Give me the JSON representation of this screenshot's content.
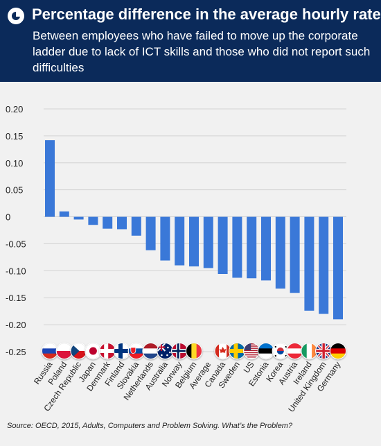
{
  "header": {
    "title": "Percentage difference in the average hourly rate",
    "subtitle": "Between employees who have failed to move up the corporate ladder due to lack of ICT skills and those who did not report such difficulties"
  },
  "source": "Source: OECD, 2015, Adults, Computers and Problem Solving. What’s the Problem?",
  "colors": {
    "bar": "#3a78d8",
    "header_bg": "#0b2a5a",
    "background": "#f1f1f1"
  },
  "chart_data": {
    "type": "bar",
    "title": "Percentage difference in the average hourly rate",
    "ylim": [
      -0.25,
      0.2
    ],
    "yticks": [
      0.2,
      0.15,
      0.1,
      0.05,
      0,
      -0.05,
      -0.1,
      -0.15,
      -0.2,
      -0.25
    ],
    "ytick_labels": [
      "0.20",
      "0.15",
      "0.10",
      "0.05",
      "0",
      "-0.05",
      "-0.10",
      "-0.15",
      "-0.20",
      "-0.25"
    ],
    "categories": [
      "Russia",
      "Poland",
      "Czech Republic",
      "Japan",
      "Denmark",
      "Finland",
      "Slovakia",
      "Netherlands",
      "Australia",
      "Norway",
      "Belgium",
      "Average",
      "Canada",
      "Sweden",
      "US",
      "Estonia",
      "Korea",
      "Austria",
      "Ireland",
      "United Kingdom",
      "Germany"
    ],
    "values": [
      0.142,
      0.01,
      -0.005,
      -0.015,
      -0.022,
      -0.023,
      -0.035,
      -0.062,
      -0.081,
      -0.09,
      -0.092,
      -0.095,
      -0.106,
      -0.113,
      -0.114,
      -0.118,
      -0.133,
      -0.141,
      -0.174,
      -0.18,
      -0.19
    ],
    "flag_icons": [
      "russia-flag-icon",
      "poland-flag-icon",
      "czech-republic-flag-icon",
      "japan-flag-icon",
      "denmark-flag-icon",
      "finland-flag-icon",
      "slovakia-flag-icon",
      "netherlands-flag-icon",
      "australia-flag-icon",
      "norway-flag-icon",
      "belgium-flag-icon",
      "",
      "canada-flag-icon",
      "sweden-flag-icon",
      "us-flag-icon",
      "estonia-flag-icon",
      "korea-flag-icon",
      "austria-flag-icon",
      "ireland-flag-icon",
      "united-kingdom-flag-icon",
      "germany-flag-icon"
    ],
    "grid": true
  }
}
